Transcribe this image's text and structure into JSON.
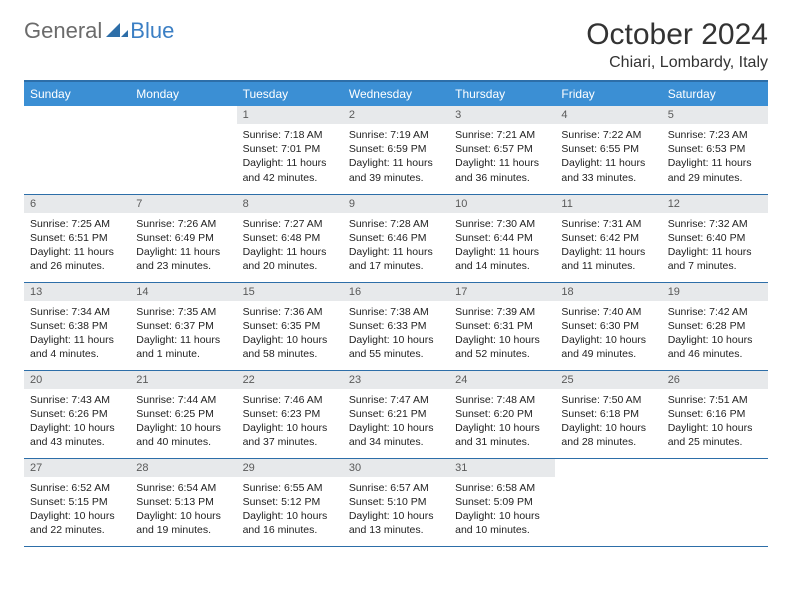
{
  "brand": {
    "general": "General",
    "blue": "Blue"
  },
  "title": "October 2024",
  "location": "Chiari, Lombardy, Italy",
  "colors": {
    "header_bg": "#3b8fd4",
    "border": "#2d6ea8",
    "daynum_bg": "#e7e9eb",
    "logo_gray": "#6b6b6b",
    "logo_blue": "#3b7fc4"
  },
  "daynames": [
    "Sunday",
    "Monday",
    "Tuesday",
    "Wednesday",
    "Thursday",
    "Friday",
    "Saturday"
  ],
  "weeks": [
    [
      {
        "n": "",
        "sr": "",
        "ss": "",
        "dl": ""
      },
      {
        "n": "",
        "sr": "",
        "ss": "",
        "dl": ""
      },
      {
        "n": "1",
        "sr": "Sunrise: 7:18 AM",
        "ss": "Sunset: 7:01 PM",
        "dl": "Daylight: 11 hours and 42 minutes."
      },
      {
        "n": "2",
        "sr": "Sunrise: 7:19 AM",
        "ss": "Sunset: 6:59 PM",
        "dl": "Daylight: 11 hours and 39 minutes."
      },
      {
        "n": "3",
        "sr": "Sunrise: 7:21 AM",
        "ss": "Sunset: 6:57 PM",
        "dl": "Daylight: 11 hours and 36 minutes."
      },
      {
        "n": "4",
        "sr": "Sunrise: 7:22 AM",
        "ss": "Sunset: 6:55 PM",
        "dl": "Daylight: 11 hours and 33 minutes."
      },
      {
        "n": "5",
        "sr": "Sunrise: 7:23 AM",
        "ss": "Sunset: 6:53 PM",
        "dl": "Daylight: 11 hours and 29 minutes."
      }
    ],
    [
      {
        "n": "6",
        "sr": "Sunrise: 7:25 AM",
        "ss": "Sunset: 6:51 PM",
        "dl": "Daylight: 11 hours and 26 minutes."
      },
      {
        "n": "7",
        "sr": "Sunrise: 7:26 AM",
        "ss": "Sunset: 6:49 PM",
        "dl": "Daylight: 11 hours and 23 minutes."
      },
      {
        "n": "8",
        "sr": "Sunrise: 7:27 AM",
        "ss": "Sunset: 6:48 PM",
        "dl": "Daylight: 11 hours and 20 minutes."
      },
      {
        "n": "9",
        "sr": "Sunrise: 7:28 AM",
        "ss": "Sunset: 6:46 PM",
        "dl": "Daylight: 11 hours and 17 minutes."
      },
      {
        "n": "10",
        "sr": "Sunrise: 7:30 AM",
        "ss": "Sunset: 6:44 PM",
        "dl": "Daylight: 11 hours and 14 minutes."
      },
      {
        "n": "11",
        "sr": "Sunrise: 7:31 AM",
        "ss": "Sunset: 6:42 PM",
        "dl": "Daylight: 11 hours and 11 minutes."
      },
      {
        "n": "12",
        "sr": "Sunrise: 7:32 AM",
        "ss": "Sunset: 6:40 PM",
        "dl": "Daylight: 11 hours and 7 minutes."
      }
    ],
    [
      {
        "n": "13",
        "sr": "Sunrise: 7:34 AM",
        "ss": "Sunset: 6:38 PM",
        "dl": "Daylight: 11 hours and 4 minutes."
      },
      {
        "n": "14",
        "sr": "Sunrise: 7:35 AM",
        "ss": "Sunset: 6:37 PM",
        "dl": "Daylight: 11 hours and 1 minute."
      },
      {
        "n": "15",
        "sr": "Sunrise: 7:36 AM",
        "ss": "Sunset: 6:35 PM",
        "dl": "Daylight: 10 hours and 58 minutes."
      },
      {
        "n": "16",
        "sr": "Sunrise: 7:38 AM",
        "ss": "Sunset: 6:33 PM",
        "dl": "Daylight: 10 hours and 55 minutes."
      },
      {
        "n": "17",
        "sr": "Sunrise: 7:39 AM",
        "ss": "Sunset: 6:31 PM",
        "dl": "Daylight: 10 hours and 52 minutes."
      },
      {
        "n": "18",
        "sr": "Sunrise: 7:40 AM",
        "ss": "Sunset: 6:30 PM",
        "dl": "Daylight: 10 hours and 49 minutes."
      },
      {
        "n": "19",
        "sr": "Sunrise: 7:42 AM",
        "ss": "Sunset: 6:28 PM",
        "dl": "Daylight: 10 hours and 46 minutes."
      }
    ],
    [
      {
        "n": "20",
        "sr": "Sunrise: 7:43 AM",
        "ss": "Sunset: 6:26 PM",
        "dl": "Daylight: 10 hours and 43 minutes."
      },
      {
        "n": "21",
        "sr": "Sunrise: 7:44 AM",
        "ss": "Sunset: 6:25 PM",
        "dl": "Daylight: 10 hours and 40 minutes."
      },
      {
        "n": "22",
        "sr": "Sunrise: 7:46 AM",
        "ss": "Sunset: 6:23 PM",
        "dl": "Daylight: 10 hours and 37 minutes."
      },
      {
        "n": "23",
        "sr": "Sunrise: 7:47 AM",
        "ss": "Sunset: 6:21 PM",
        "dl": "Daylight: 10 hours and 34 minutes."
      },
      {
        "n": "24",
        "sr": "Sunrise: 7:48 AM",
        "ss": "Sunset: 6:20 PM",
        "dl": "Daylight: 10 hours and 31 minutes."
      },
      {
        "n": "25",
        "sr": "Sunrise: 7:50 AM",
        "ss": "Sunset: 6:18 PM",
        "dl": "Daylight: 10 hours and 28 minutes."
      },
      {
        "n": "26",
        "sr": "Sunrise: 7:51 AM",
        "ss": "Sunset: 6:16 PM",
        "dl": "Daylight: 10 hours and 25 minutes."
      }
    ],
    [
      {
        "n": "27",
        "sr": "Sunrise: 6:52 AM",
        "ss": "Sunset: 5:15 PM",
        "dl": "Daylight: 10 hours and 22 minutes."
      },
      {
        "n": "28",
        "sr": "Sunrise: 6:54 AM",
        "ss": "Sunset: 5:13 PM",
        "dl": "Daylight: 10 hours and 19 minutes."
      },
      {
        "n": "29",
        "sr": "Sunrise: 6:55 AM",
        "ss": "Sunset: 5:12 PM",
        "dl": "Daylight: 10 hours and 16 minutes."
      },
      {
        "n": "30",
        "sr": "Sunrise: 6:57 AM",
        "ss": "Sunset: 5:10 PM",
        "dl": "Daylight: 10 hours and 13 minutes."
      },
      {
        "n": "31",
        "sr": "Sunrise: 6:58 AM",
        "ss": "Sunset: 5:09 PM",
        "dl": "Daylight: 10 hours and 10 minutes."
      },
      {
        "n": "",
        "sr": "",
        "ss": "",
        "dl": ""
      },
      {
        "n": "",
        "sr": "",
        "ss": "",
        "dl": ""
      }
    ]
  ]
}
